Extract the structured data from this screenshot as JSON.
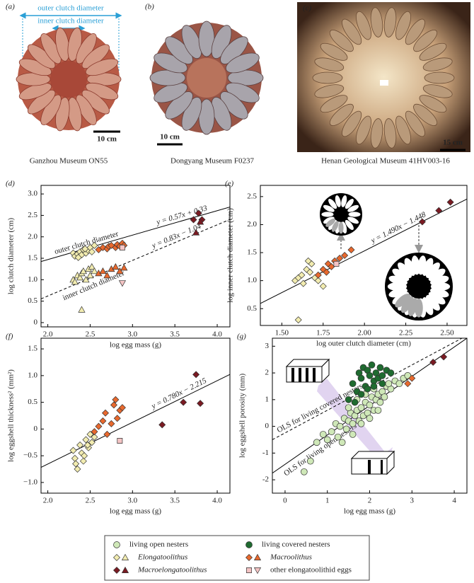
{
  "photos": [
    {
      "label": "(a)",
      "caption": "Ganzhou Museum ON55",
      "scale": "10 cm",
      "annotations": [
        "outer clutch diameter",
        "inner clutch diameter"
      ]
    },
    {
      "label": "(b)",
      "caption": "Dongyang Museum F0237",
      "scale": "10 cm"
    },
    {
      "label": "(c)",
      "caption": "Henan Geological Museum 41HV003-16",
      "scale": "15 cm"
    }
  ],
  "chart_data": [
    {
      "type": "scatter",
      "panel": "(d)",
      "x_label": "log egg mass (g)",
      "y_label": "log clutch diameter (cm)",
      "xlim": [
        1.92,
        4.15
      ],
      "ylim": [
        -0.1,
        3.2
      ],
      "xticks": [
        {
          "value": 2,
          "label": "2.0"
        },
        2.5,
        {
          "value": 3,
          "label": "3.0"
        },
        3.5,
        {
          "value": 4,
          "label": "4.0"
        }
      ],
      "yticks": [
        0,
        0.5,
        {
          "value": 1,
          "label": "1.0"
        },
        1.5,
        {
          "value": 2,
          "label": "2.0"
        },
        2.5,
        {
          "value": 3,
          "label": "3.0"
        }
      ],
      "series": [
        {
          "marker": "diamond",
          "color": "#f2ecb0",
          "x": [
            2.3,
            2.32,
            2.35,
            2.38,
            2.4,
            2.42,
            2.45,
            2.48,
            2.5,
            2.52,
            2.55,
            2.36,
            2.44
          ],
          "values": [
            1.62,
            1.55,
            1.6,
            1.65,
            1.58,
            1.7,
            1.62,
            1.68,
            1.75,
            1.65,
            1.8,
            1.52,
            1.72
          ]
        },
        {
          "marker": "triangle",
          "color": "#f2ecb0",
          "x": [
            2.3,
            2.32,
            2.35,
            2.38,
            2.4,
            2.42,
            2.45,
            2.48,
            2.5,
            2.52,
            2.55,
            2.4
          ],
          "values": [
            1.0,
            0.95,
            1.1,
            1.05,
            1.15,
            1.2,
            1.0,
            1.25,
            1.1,
            1.3,
            1.2,
            0.3
          ]
        },
        {
          "marker": "diamond",
          "color": "#e8692e",
          "x": [
            2.6,
            2.65,
            2.7,
            2.72,
            2.75,
            2.8,
            2.82,
            2.85,
            2.88,
            2.9
          ],
          "values": [
            1.7,
            1.75,
            1.72,
            1.78,
            1.8,
            1.75,
            1.82,
            1.78,
            1.85,
            1.8
          ]
        },
        {
          "marker": "triangle",
          "color": "#e8692e",
          "x": [
            2.6,
            2.65,
            2.7,
            2.75,
            2.8,
            2.85,
            2.9
          ],
          "values": [
            1.15,
            1.2,
            1.1,
            1.25,
            1.3,
            1.2,
            1.28
          ]
        },
        {
          "marker": "diamond",
          "color": "#7a1a22",
          "x": [
            3.72,
            3.78,
            3.82
          ],
          "values": [
            2.4,
            2.55,
            2.4
          ]
        },
        {
          "marker": "triangle",
          "color": "#7a1a22",
          "x": [
            3.75,
            3.8
          ],
          "values": [
            2.1,
            2.35
          ]
        },
        {
          "marker": "square",
          "color": "#f4c4c4",
          "x": [
            2.88
          ],
          "values": [
            1.75
          ]
        },
        {
          "marker": "triangle-down",
          "color": "#f4c4c4",
          "x": [
            2.88
          ],
          "values": [
            0.92
          ]
        }
      ],
      "lines": [
        {
          "name": "outer clutch diameter",
          "label": "y = 0.57x + 0.33",
          "dash": false,
          "x": [
            1.92,
            4.15
          ],
          "values": [
            1.424,
            2.696
          ]
        },
        {
          "name": "inner clutch diameter",
          "label": "y = 0.83x − 1.04",
          "dash": true,
          "x": [
            1.92,
            4.15
          ],
          "values": [
            0.554,
            2.405
          ]
        }
      ]
    },
    {
      "type": "scatter",
      "panel": "(e)",
      "x_label": "log outer clutch diameter (cm)",
      "y_label": "log inner clutch diameter (cm)",
      "xlim": [
        1.37,
        2.62
      ],
      "ylim": [
        0.2,
        2.7
      ],
      "xticks": [
        {
          "value": 1.5,
          "label": "1.50"
        },
        1.75,
        {
          "value": 2,
          "label": "2.00"
        },
        2.25,
        {
          "value": 2.5,
          "label": "2.50"
        }
      ],
      "yticks": [
        0.5,
        {
          "value": 1,
          "label": "1.0"
        },
        1.5,
        {
          "value": 2,
          "label": "2.0"
        },
        2.5
      ],
      "series": [
        {
          "marker": "diamond",
          "color": "#f2ecb0",
          "x": [
            1.58,
            1.6,
            1.62,
            1.63,
            1.65,
            1.67,
            1.68,
            1.7,
            1.72,
            1.75,
            1.6,
            1.66
          ],
          "values": [
            1.0,
            1.05,
            1.1,
            0.95,
            1.2,
            1.15,
            1.3,
            1.05,
            1.0,
            0.9,
            0.3,
            1.35
          ]
        },
        {
          "marker": "diamond",
          "color": "#e8692e",
          "x": [
            1.72,
            1.75,
            1.77,
            1.78,
            1.8,
            1.82,
            1.85,
            1.88,
            1.92
          ],
          "values": [
            1.1,
            1.2,
            1.15,
            1.3,
            1.25,
            1.35,
            1.4,
            1.45,
            1.55
          ]
        },
        {
          "marker": "diamond",
          "color": "#7a1a22",
          "x": [
            2.35,
            2.45,
            2.52
          ],
          "values": [
            2.05,
            2.25,
            2.4
          ]
        },
        {
          "marker": "square",
          "color": "#f4c4c4",
          "x": [
            1.83
          ],
          "values": [
            1.3
          ]
        }
      ],
      "lines": [
        {
          "label": "y = 1.490x − 1.448",
          "dash": false,
          "x": [
            1.37,
            2.62
          ],
          "values": [
            0.593,
            2.456
          ]
        }
      ]
    },
    {
      "type": "scatter",
      "panel": "(f)",
      "x_label": "log egg mass (g)",
      "y_label": "log eggshell thickness² (mm²)",
      "xlim": [
        1.92,
        4.15
      ],
      "ylim": [
        -1.2,
        1.7
      ],
      "xticks": [
        {
          "value": 2,
          "label": "2.0"
        },
        2.5,
        {
          "value": 3,
          "label": "3.0"
        },
        3.5,
        {
          "value": 4,
          "label": "4.0"
        }
      ],
      "yticks": [
        {
          "value": -1,
          "label": "−1.0"
        },
        {
          "value": -0.5,
          "label": "−0.5"
        },
        0,
        0.5,
        {
          "value": 1,
          "label": "1.0"
        },
        1.5
      ],
      "series": [
        {
          "marker": "diamond",
          "color": "#f2ecb0",
          "x": [
            2.3,
            2.32,
            2.35,
            2.38,
            2.4,
            2.42,
            2.45,
            2.48,
            2.5,
            2.52,
            2.55,
            2.33,
            2.43,
            2.47
          ],
          "values": [
            -0.4,
            -0.55,
            -0.75,
            -0.3,
            -0.45,
            -0.6,
            -0.2,
            -0.35,
            -0.1,
            -0.25,
            -0.15,
            -0.65,
            -0.5,
            -0.3
          ]
        },
        {
          "marker": "diamond",
          "color": "#e8692e",
          "x": [
            2.55,
            2.6,
            2.65,
            2.68,
            2.7,
            2.75,
            2.78,
            2.8,
            2.82,
            2.85,
            2.88
          ],
          "values": [
            -0.05,
            0.05,
            0.15,
            0.3,
            -0.1,
            0.1,
            0.45,
            0.55,
            0.2,
            0.35,
            0.4
          ]
        },
        {
          "marker": "diamond",
          "color": "#7a1a22",
          "x": [
            3.35,
            3.6,
            3.75,
            3.8
          ],
          "values": [
            0.08,
            0.5,
            1.02,
            0.48
          ]
        },
        {
          "marker": "square",
          "color": "#f4c4c4",
          "x": [
            2.85
          ],
          "values": [
            -0.22
          ]
        }
      ],
      "lines": [
        {
          "label": "y = 0.780x − 2.215",
          "dash": false,
          "x": [
            1.92,
            4.15
          ],
          "values": [
            -0.717,
            1.022
          ]
        }
      ]
    },
    {
      "type": "scatter",
      "panel": "(g)",
      "x_label": "log egg mass (g)",
      "y_label": "log eggshell porosity (mm)",
      "xlim": [
        -0.3,
        4.3
      ],
      "ylim": [
        -2.5,
        3.3
      ],
      "xticks": [
        0,
        1,
        2,
        3,
        4
      ],
      "yticks": [
        -2,
        -1,
        0,
        1,
        2,
        3
      ],
      "series": [
        {
          "marker": "circle",
          "color": "#cfe8b8",
          "x": [
            0.45,
            0.6,
            0.75,
            0.9,
            1.0,
            1.1,
            1.2,
            1.25,
            1.3,
            1.4,
            1.45,
            1.5,
            1.55,
            1.6,
            1.65,
            1.7,
            1.75,
            1.8,
            1.85,
            1.9,
            1.95,
            2.0,
            2.05,
            2.1,
            2.15,
            2.2,
            2.25,
            2.3,
            2.35,
            2.4,
            2.5,
            2.6,
            2.7,
            2.8,
            2.9,
            1.35,
            1.6,
            1.8,
            2.0,
            2.2,
            1.5,
            1.7,
            1.9,
            2.1,
            2.45
          ],
          "values": [
            -1.7,
            -1.3,
            -0.6,
            -0.3,
            -0.5,
            -0.2,
            0.1,
            -0.4,
            0.0,
            0.3,
            -0.1,
            0.2,
            0.5,
            0.1,
            0.4,
            0.6,
            0.2,
            0.7,
            0.4,
            0.9,
            0.5,
            0.8,
            1.1,
            0.6,
            1.0,
            1.2,
            0.9,
            1.3,
            1.1,
            1.5,
            1.4,
            1.7,
            1.6,
            1.8,
            1.9,
            -0.6,
            -0.3,
            0.1,
            0.3,
            0.6,
            0.7,
            1.0,
            1.2,
            1.4,
            1.6
          ]
        },
        {
          "marker": "circle",
          "color": "#1f6b30",
          "x": [
            1.5,
            1.6,
            1.7,
            1.75,
            1.8,
            1.85,
            1.9,
            1.95,
            2.0,
            2.05,
            2.1,
            2.15,
            2.2,
            2.25,
            2.3,
            2.4,
            1.65,
            1.8,
            1.95,
            2.1,
            2.3,
            2.5
          ],
          "values": [
            1.0,
            1.6,
            1.3,
            2.0,
            1.8,
            2.2,
            1.5,
            2.1,
            1.9,
            2.3,
            1.7,
            2.0,
            1.8,
            2.2,
            1.9,
            2.1,
            0.9,
            1.2,
            1.4,
            1.5,
            1.6,
            2.0
          ]
        },
        {
          "marker": "diamond",
          "color": "#e8692e",
          "x": [
            2.9,
            3.0
          ],
          "values": [
            1.6,
            1.8
          ]
        },
        {
          "marker": "diamond",
          "color": "#7a1a22",
          "x": [
            3.5,
            3.75
          ],
          "values": [
            2.4,
            2.6
          ]
        }
      ],
      "lines": [
        {
          "name": "OLS for living covered nesters",
          "dash": true,
          "x": [
            -0.3,
            4.3
          ],
          "values": [
            -0.5,
            3.4
          ]
        },
        {
          "name": "OLS for living open nesters",
          "dash": false,
          "x": [
            -0.3,
            4.3
          ],
          "values": [
            -1.75,
            3.3
          ]
        }
      ]
    }
  ],
  "legend": [
    {
      "label": "living open nesters",
      "italic": false,
      "markers": [
        {
          "marker": "circle",
          "color": "#cfe8b8"
        }
      ]
    },
    {
      "label": "Elongatoolithus",
      "italic": true,
      "markers": [
        {
          "marker": "diamond",
          "color": "#f2ecb0"
        },
        {
          "marker": "triangle",
          "color": "#f2ecb0"
        }
      ]
    },
    {
      "label": "Macroelongatoolithus",
      "italic": true,
      "markers": [
        {
          "marker": "diamond",
          "color": "#7a1a22"
        },
        {
          "marker": "triangle",
          "color": "#7a1a22"
        }
      ]
    },
    {
      "label": "living covered nesters",
      "italic": false,
      "markers": [
        {
          "marker": "circle",
          "color": "#1f6b30"
        }
      ]
    },
    {
      "label": "Macroolithus",
      "italic": true,
      "markers": [
        {
          "marker": "diamond",
          "color": "#e8692e"
        },
        {
          "marker": "triangle",
          "color": "#e8692e"
        }
      ]
    },
    {
      "label": "other elongatoolithid eggs",
      "italic": false,
      "markers": [
        {
          "marker": "square",
          "color": "#f4c4c4"
        },
        {
          "marker": "triangle-down",
          "color": "#f4c4c4"
        }
      ]
    }
  ]
}
